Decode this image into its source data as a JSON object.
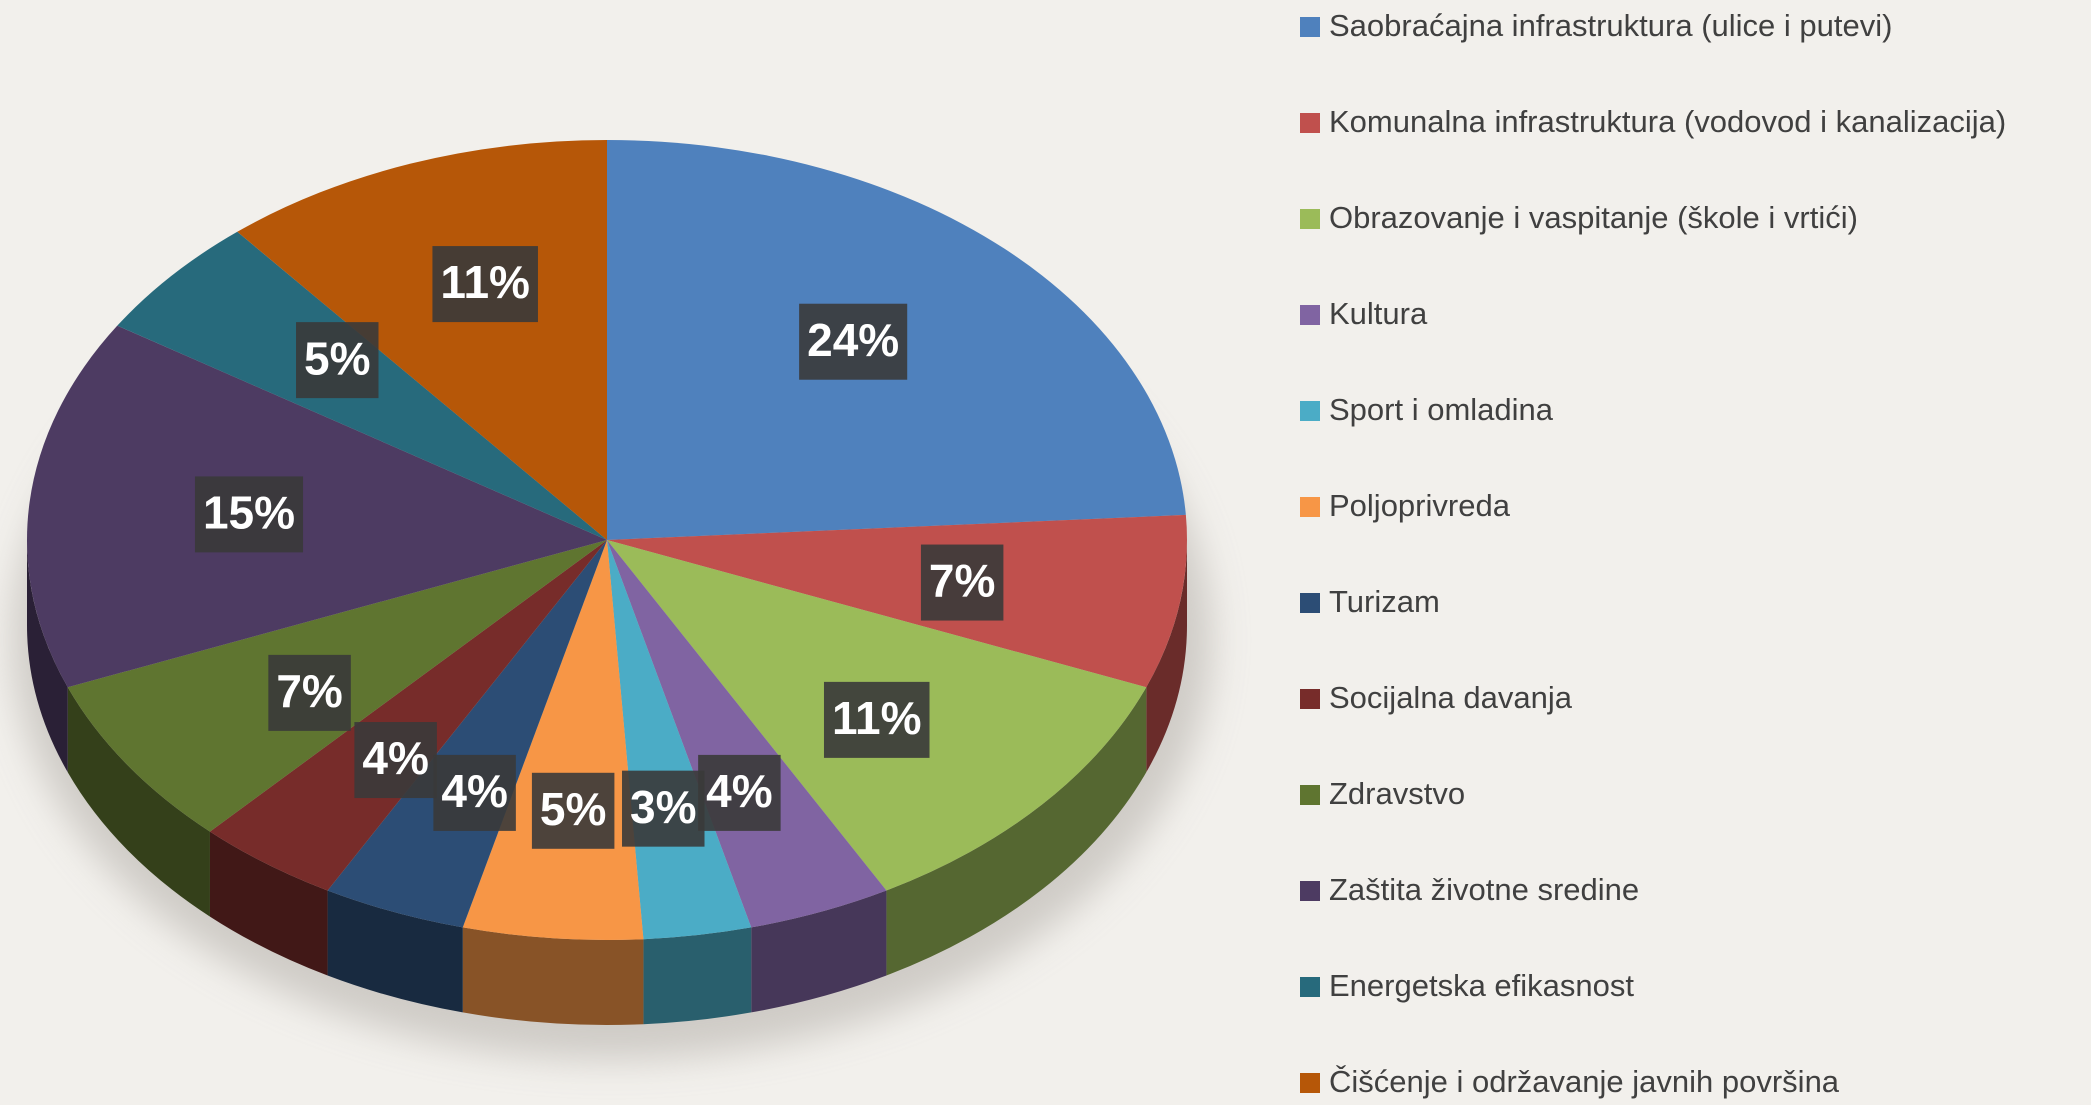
{
  "chart_data": {
    "type": "pie",
    "categories": [
      "Saobraćajna infrastruktura (ulice i putevi)",
      "Komunalna infrastruktura (vodovod i kanalizacija)",
      "Obrazovanje i vaspitanje (škole i vrtići)",
      "Kultura",
      "Sport i omladina",
      "Poljoprivreda",
      "Turizam",
      "Socijalna davanja",
      "Zdravstvo",
      "Zaštita životne sredine",
      "Energetska efikasnost",
      "Čišćenje i održavanje javnih površina"
    ],
    "values": [
      24,
      7,
      11,
      4,
      3,
      5,
      4,
      4,
      7,
      15,
      5,
      11
    ],
    "value_labels": [
      "24%",
      "7%",
      "11%",
      "4%",
      "3%",
      "5%",
      "4%",
      "4%",
      "7%",
      "15%",
      "5%",
      "11%"
    ],
    "colors": [
      "#4f81bd",
      "#c0504d",
      "#9bbb59",
      "#8064a2",
      "#4bacc6",
      "#f79646",
      "#2c4d75",
      "#772c2a",
      "#5f7530",
      "#4d3b62",
      "#276a7c",
      "#b65708"
    ],
    "legend": "right"
  }
}
